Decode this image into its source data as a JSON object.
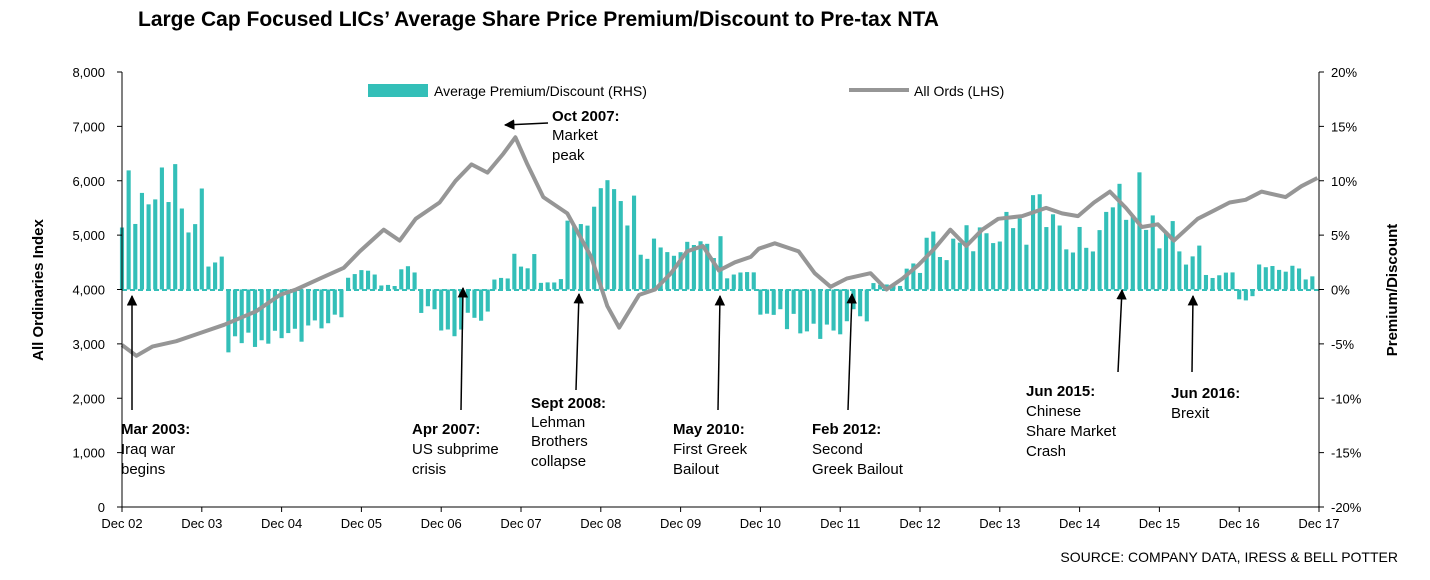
{
  "chart_data": {
    "type": "bar+line",
    "title": "Large Cap Focused LICs’ Average Share Price Premium/Discount to Pre-tax NTA",
    "source": "SOURCE: COMPANY DATA, IRESS & BELL POTTER",
    "x_ticks": [
      "Dec 02",
      "Dec 03",
      "Dec 04",
      "Dec 05",
      "Dec 06",
      "Dec 07",
      "Dec 08",
      "Dec 09",
      "Dec 10",
      "Dec 11",
      "Dec 12",
      "Dec 13",
      "Dec 14",
      "Dec 15",
      "Dec 16",
      "Dec 17"
    ],
    "y_left": {
      "label": "All Ordinaries Index",
      "ticks": [
        "0",
        "1,000",
        "2,000",
        "3,000",
        "4,000",
        "5,000",
        "6,000",
        "7,000",
        "8,000"
      ],
      "range": [
        0,
        8000
      ]
    },
    "y_right": {
      "label": "Premium/Discount",
      "ticks": [
        "-20%",
        "-15%",
        "-10%",
        "-5%",
        "0%",
        "5%",
        "10%",
        "15%",
        "20%"
      ],
      "range": [
        -20,
        20
      ]
    },
    "legend": {
      "bars": "Average Premium/Discount (RHS)",
      "line": "All Ords (LHS)"
    },
    "colors": {
      "bars": "#33bfb8",
      "line": "#969696",
      "text": "#000000"
    },
    "series": [
      {
        "name": "All Ords (LHS)",
        "axis": "left",
        "points": [
          [
            2002.92,
            2980
          ],
          [
            2003.1,
            2780
          ],
          [
            2003.3,
            2950
          ],
          [
            2003.6,
            3050
          ],
          [
            2003.9,
            3200
          ],
          [
            2004.2,
            3350
          ],
          [
            2004.6,
            3600
          ],
          [
            2004.9,
            3900
          ],
          [
            2005.1,
            4000
          ],
          [
            2005.4,
            4200
          ],
          [
            2005.7,
            4400
          ],
          [
            2005.9,
            4700
          ],
          [
            2006.2,
            5100
          ],
          [
            2006.4,
            4900
          ],
          [
            2006.6,
            5300
          ],
          [
            2006.9,
            5600
          ],
          [
            2007.1,
            6000
          ],
          [
            2007.3,
            6300
          ],
          [
            2007.5,
            6150
          ],
          [
            2007.7,
            6500
          ],
          [
            2007.85,
            6800
          ],
          [
            2008.0,
            6300
          ],
          [
            2008.2,
            5700
          ],
          [
            2008.5,
            5400
          ],
          [
            2008.8,
            4600
          ],
          [
            2009.0,
            3700
          ],
          [
            2009.15,
            3300
          ],
          [
            2009.4,
            3900
          ],
          [
            2009.6,
            4000
          ],
          [
            2009.8,
            4300
          ],
          [
            2010.0,
            4700
          ],
          [
            2010.2,
            4800
          ],
          [
            2010.4,
            4350
          ],
          [
            2010.6,
            4500
          ],
          [
            2010.8,
            4600
          ],
          [
            2010.9,
            4750
          ],
          [
            2011.1,
            4850
          ],
          [
            2011.4,
            4700
          ],
          [
            2011.6,
            4300
          ],
          [
            2011.8,
            4050
          ],
          [
            2012.0,
            4200
          ],
          [
            2012.3,
            4300
          ],
          [
            2012.5,
            4000
          ],
          [
            2012.7,
            4200
          ],
          [
            2012.9,
            4450
          ],
          [
            2013.1,
            4750
          ],
          [
            2013.3,
            5100
          ],
          [
            2013.5,
            4800
          ],
          [
            2013.7,
            5100
          ],
          [
            2013.9,
            5300
          ],
          [
            2014.2,
            5350
          ],
          [
            2014.5,
            5500
          ],
          [
            2014.7,
            5400
          ],
          [
            2014.9,
            5350
          ],
          [
            2015.1,
            5600
          ],
          [
            2015.3,
            5800
          ],
          [
            2015.5,
            5500
          ],
          [
            2015.7,
            5150
          ],
          [
            2015.9,
            5200
          ],
          [
            2016.1,
            4900
          ],
          [
            2016.4,
            5300
          ],
          [
            2016.6,
            5450
          ],
          [
            2016.8,
            5600
          ],
          [
            2017.0,
            5650
          ],
          [
            2017.2,
            5800
          ],
          [
            2017.5,
            5700
          ],
          [
            2017.7,
            5900
          ],
          [
            2017.9,
            6050
          ]
        ]
      },
      {
        "name": "Average Premium/Discount (RHS)",
        "axis": "right",
        "segments": [
          [
            2002.92,
            2003.35,
            9.5
          ],
          [
            2003.35,
            2003.6,
            11.5
          ],
          [
            2003.6,
            2003.95,
            8.5
          ],
          [
            2003.95,
            2004.25,
            3.5
          ],
          [
            2004.25,
            2004.8,
            -5
          ],
          [
            2004.8,
            2005.2,
            -4
          ],
          [
            2005.2,
            2005.7,
            -3
          ],
          [
            2005.7,
            2006.1,
            1.5
          ],
          [
            2006.1,
            2006.4,
            0.5
          ],
          [
            2006.4,
            2006.6,
            2
          ],
          [
            2006.6,
            2006.9,
            -2
          ],
          [
            2006.9,
            2007.2,
            -5.5
          ],
          [
            2007.2,
            2007.55,
            -3
          ],
          [
            2007.55,
            2007.8,
            1
          ],
          [
            2007.8,
            2008.1,
            3
          ],
          [
            2008.1,
            2008.45,
            1
          ],
          [
            2008.45,
            2008.8,
            6
          ],
          [
            2008.8,
            2009.35,
            8.5
          ],
          [
            2009.35,
            2009.7,
            4.5
          ],
          [
            2009.7,
            2010.0,
            3
          ],
          [
            2010.0,
            2010.5,
            4.5
          ],
          [
            2010.5,
            2010.9,
            1.5
          ],
          [
            2010.9,
            2011.2,
            -2
          ],
          [
            2011.2,
            2011.6,
            -3.5
          ],
          [
            2011.6,
            2012.0,
            -4
          ],
          [
            2012.0,
            2012.3,
            -2.5
          ],
          [
            2012.3,
            2012.7,
            0.5
          ],
          [
            2012.7,
            2012.95,
            2
          ],
          [
            2012.95,
            2013.4,
            4.5
          ],
          [
            2013.4,
            2013.8,
            5.5
          ],
          [
            2013.8,
            2014.3,
            6
          ],
          [
            2014.3,
            2014.75,
            8
          ],
          [
            2014.75,
            2015.1,
            5
          ],
          [
            2015.1,
            2015.45,
            8.5
          ],
          [
            2015.45,
            2015.75,
            10.5
          ],
          [
            2015.75,
            2016.1,
            6
          ],
          [
            2016.1,
            2016.5,
            3.5
          ],
          [
            2016.5,
            2016.85,
            1.5
          ],
          [
            2016.85,
            2017.1,
            -1
          ],
          [
            2017.1,
            2017.4,
            3
          ],
          [
            2017.4,
            2017.7,
            2
          ],
          [
            2017.7,
            2017.92,
            1.5
          ]
        ]
      }
    ],
    "annotations": [
      {
        "date_bold": "Mar 2003:",
        "text": [
          "Iraq war",
          "begins"
        ]
      },
      {
        "date_bold": "Apr 2007:",
        "text": [
          "US subprime",
          "crisis"
        ]
      },
      {
        "date_bold": "Oct 2007:",
        "text": [
          "Market",
          "peak"
        ]
      },
      {
        "date_bold": "Sept 2008:",
        "text": [
          "Lehman",
          "Brothers",
          "collapse"
        ]
      },
      {
        "date_bold": "May 2010:",
        "text": [
          "First Greek",
          "Bailout"
        ]
      },
      {
        "date_bold": "Feb 2012:",
        "text": [
          "Second",
          "Greek Bailout"
        ]
      },
      {
        "date_bold": "Jun 2015:",
        "text": [
          "Chinese",
          "Share Market",
          "Crash"
        ]
      },
      {
        "date_bold": "Jun 2016:",
        "text": [
          "Brexit"
        ]
      }
    ]
  }
}
